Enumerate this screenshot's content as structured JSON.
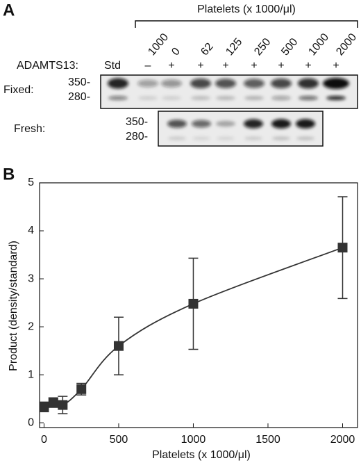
{
  "panel_a": {
    "label": "A",
    "title": "Platelets (x 1000/μl)",
    "lanes": [
      "1000",
      "0",
      "62",
      "125",
      "250",
      "500",
      "1000",
      "2000"
    ],
    "treatment_label": "ADAMTS13:",
    "standard": "Std",
    "treatment": [
      "–",
      "+",
      "+",
      "+",
      "+",
      "+",
      "+",
      "+"
    ],
    "fixed_label": "Fixed:",
    "fixed_markers": [
      "350-",
      "280-"
    ],
    "fresh_label": "Fresh:",
    "fresh_markers": [
      "350-",
      "280-"
    ]
  },
  "chart_data": {
    "type": "scatter",
    "panel_label": "B",
    "x_label": "Platelets (x 1000/μl)",
    "y_label": "Product (density/standard)",
    "x": [
      0,
      62,
      125,
      250,
      500,
      1000,
      2000
    ],
    "values": [
      0.33,
      0.42,
      0.37,
      0.7,
      1.6,
      2.48,
      3.65
    ],
    "errors": [
      0.1,
      0.1,
      0.18,
      0.12,
      0.6,
      0.95,
      1.06
    ],
    "color": "#333333",
    "smooth_line": true,
    "xlim": [
      -30,
      2100
    ],
    "ylim": [
      -0.1,
      5
    ],
    "xticks": [
      0,
      500,
      1000,
      1500,
      2000
    ],
    "yticks": [
      0,
      1,
      2,
      3,
      4,
      5
    ]
  }
}
